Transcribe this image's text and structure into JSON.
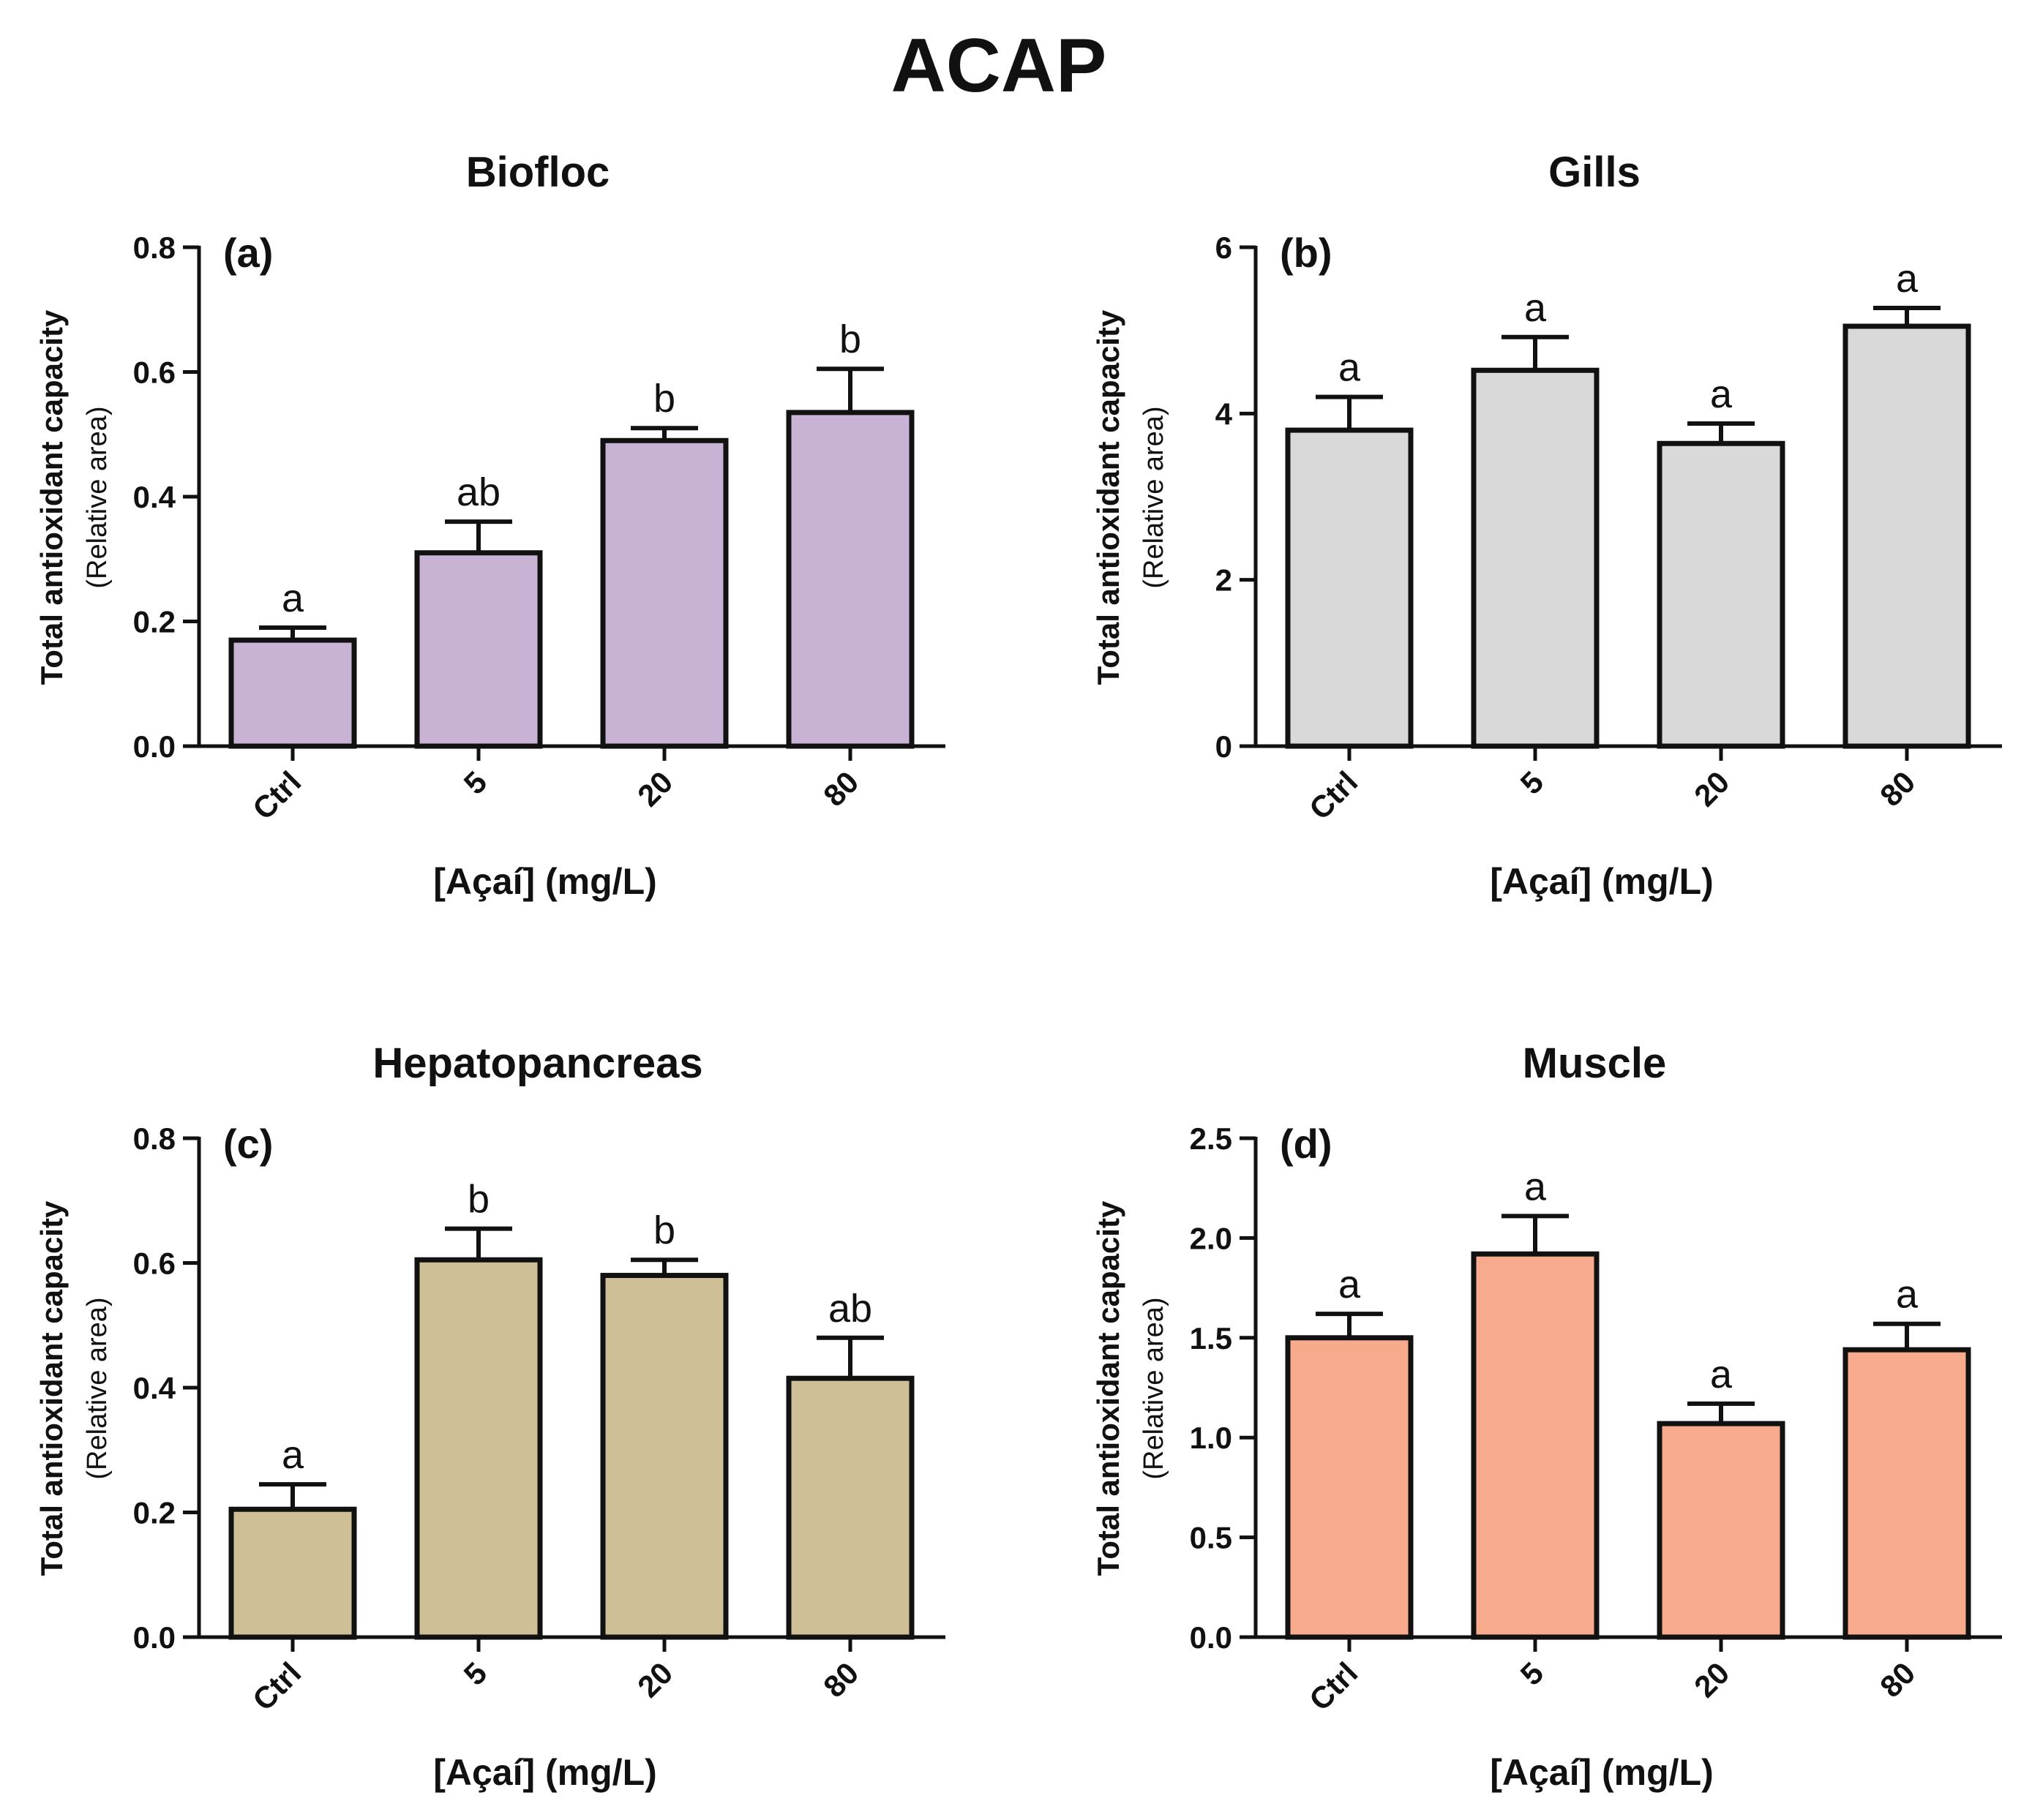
{
  "figure_title": "ACAP",
  "chart_data": [
    {
      "type": "bar",
      "panel": "(a)",
      "title": "Biofloc",
      "xlabel": "[Açaí] (mg/L)",
      "ylabel": "Total antioxidant capacity",
      "ylabel_sub": "(Relative area)",
      "categories": [
        "Ctrl",
        "5",
        "20",
        "80"
      ],
      "values": [
        0.17,
        0.31,
        0.49,
        0.535
      ],
      "errors": [
        0.02,
        0.05,
        0.02,
        0.07
      ],
      "letters": [
        "a",
        "ab",
        "b",
        "b"
      ],
      "ylim": [
        0,
        0.8
      ],
      "yticks": [
        "0.0",
        "0.2",
        "0.4",
        "0.6",
        "0.8"
      ],
      "bar_color": "#c9b3d4"
    },
    {
      "type": "bar",
      "panel": "(b)",
      "title": "Gills",
      "xlabel": "[Açaí] (mg/L)",
      "ylabel": "Total antioxidant capacity",
      "ylabel_sub": "(Relative area)",
      "categories": [
        "Ctrl",
        "5",
        "20",
        "80"
      ],
      "values": [
        3.8,
        4.52,
        3.64,
        5.05
      ],
      "errors": [
        0.4,
        0.4,
        0.24,
        0.22
      ],
      "letters": [
        "a",
        "a",
        "a",
        "a"
      ],
      "ylim": [
        0,
        6
      ],
      "yticks": [
        "0",
        "2",
        "4",
        "6"
      ],
      "bar_color": "#d9d9d9"
    },
    {
      "type": "bar",
      "panel": "(c)",
      "title": "Hepatopancreas",
      "xlabel": "[Açaí] (mg/L)",
      "ylabel": "Total antioxidant capacity",
      "ylabel_sub": "(Relative area)",
      "categories": [
        "Ctrl",
        "5",
        "20",
        "80"
      ],
      "values": [
        0.205,
        0.605,
        0.58,
        0.415
      ],
      "errors": [
        0.04,
        0.05,
        0.025,
        0.065
      ],
      "letters": [
        "a",
        "b",
        "b",
        "ab"
      ],
      "ylim": [
        0,
        0.8
      ],
      "yticks": [
        "0.0",
        "0.2",
        "0.4",
        "0.6",
        "0.8"
      ],
      "bar_color": "#cfbf96"
    },
    {
      "type": "bar",
      "panel": "(d)",
      "title": "Muscle",
      "xlabel": "[Açaí] (mg/L)",
      "ylabel": "Total antioxidant capacity",
      "ylabel_sub": "(Relative area)",
      "categories": [
        "Ctrl",
        "5",
        "20",
        "80"
      ],
      "values": [
        1.5,
        1.92,
        1.07,
        1.44
      ],
      "errors": [
        0.12,
        0.19,
        0.1,
        0.13
      ],
      "letters": [
        "a",
        "a",
        "a",
        "a"
      ],
      "ylim": [
        0,
        2.5
      ],
      "yticks": [
        "0.0",
        "0.5",
        "1.0",
        "1.5",
        "2.0",
        "2.5"
      ],
      "bar_color": "#f8aa8d"
    }
  ]
}
